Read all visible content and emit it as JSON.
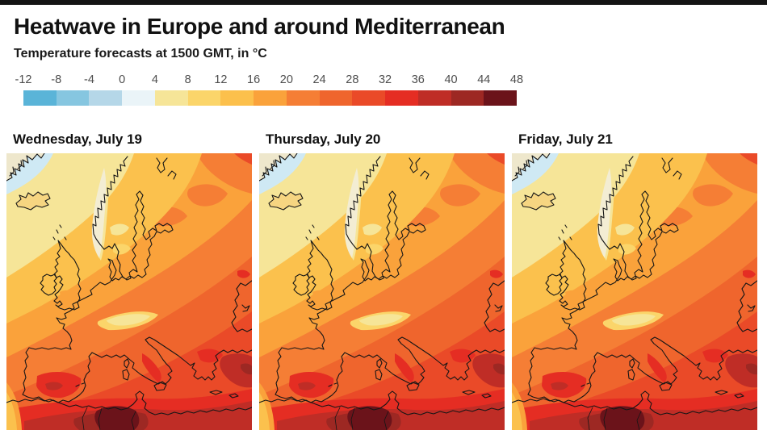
{
  "page": {
    "top_bar_color": "#141414",
    "background": "#ffffff"
  },
  "header": {
    "title": "Heatwave in Europe and around Mediterranean",
    "subtitle": "Temperature forecasts at 1500 GMT, in °C"
  },
  "legend": {
    "tick_labels": [
      "-12",
      "-8",
      "-4",
      "0",
      "4",
      "8",
      "12",
      "16",
      "20",
      "24",
      "28",
      "32",
      "36",
      "40",
      "44",
      "48"
    ],
    "segment_colors": [
      "#5ab4d8",
      "#86c6e0",
      "#b5d7e8",
      "#eaf4f8",
      "#f6e598",
      "#fbd56a",
      "#fcc04c",
      "#faa23b",
      "#f57e35",
      "#ef652d",
      "#ea4a28",
      "#e52d23",
      "#bf2d26",
      "#9d2823",
      "#6b131a"
    ]
  },
  "panels": [
    {
      "label": "Wednesday, July 19"
    },
    {
      "label": "Thursday, July 20"
    },
    {
      "label": "Friday, July 21"
    }
  ]
}
